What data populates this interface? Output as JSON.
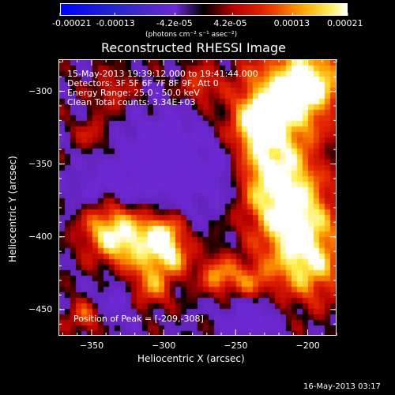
{
  "colorbar": {
    "tick_labels": [
      "-0.00021",
      "-0.00013",
      "-4.2e-05",
      "4.2e-05",
      "0.00013",
      "0.00021"
    ],
    "units": "(photons cm⁻² s⁻¹ asec⁻²)"
  },
  "chart_data": {
    "type": "heatmap",
    "title": "Reconstructed RHESSI Image",
    "xlabel": "Heliocentric X (arcsec)",
    "ylabel": "Heliocentric Y (arcsec)",
    "xlim": [
      -373,
      -180
    ],
    "ylim": [
      -468,
      -278
    ],
    "x_ticks": [
      -350,
      -300,
      -250,
      -200
    ],
    "x_tick_labels": [
      "−350",
      "−300",
      "−250",
      "−200"
    ],
    "y_ticks": [
      -300,
      -350,
      -400,
      -450
    ],
    "y_tick_labels": [
      "−300",
      "−350",
      "−400",
      "−450"
    ],
    "color_range": [
      -0.00021,
      0.00021
    ],
    "annotations": [
      "15-May-2013 19:39:12.000 to 19:41:44.000",
      "Detectors: 3F 5F 6F 7F 8F 9F, Att 0",
      "Energy Range: 25.0 - 50.0 keV",
      "Clean     Total counts: 3.34E+03"
    ],
    "peak_label": "Position of Peak = [-209,-308]",
    "peak_position": [
      -209,
      -308
    ]
  },
  "footer": {
    "timestamp": "16-May-2013 03:17"
  }
}
